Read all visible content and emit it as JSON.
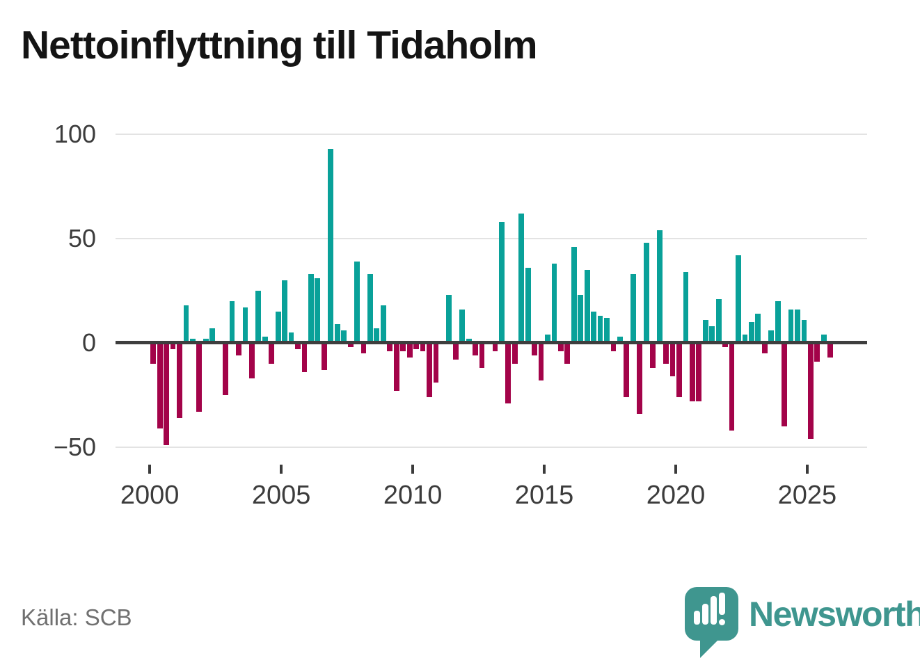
{
  "title": "Nettoinflyttning till Tidaholm",
  "source_note": "Källa: SCB",
  "branding": {
    "wordmark": "Newsworthy",
    "logo_icon": "speech-bubble-bar-chart-icon"
  },
  "colors": {
    "positive_bar": "#09a199",
    "negative_bar": "#a30349",
    "logo_teal": "#3f968f",
    "grid": "#e3e3e3",
    "zero_line": "#3e3e3e",
    "axis_text": "#3c3c3c",
    "title_text": "#141414",
    "source_text": "#707070"
  },
  "chart_data": {
    "type": "bar",
    "title": "Nettoinflyttning till Tidaholm",
    "frequency": "quarterly",
    "legend": "none",
    "grid": "horizontal-only",
    "ylim": [
      -50,
      100
    ],
    "y_axis": {
      "ticks": [
        {
          "value": 100,
          "label": "100"
        },
        {
          "value": 50,
          "label": "50"
        },
        {
          "value": 0,
          "label": "0"
        },
        {
          "value": -50,
          "label": "−50"
        }
      ]
    },
    "x_axis": {
      "ticks": [
        {
          "value": 2000,
          "label": "2000"
        },
        {
          "value": 2005,
          "label": "2005"
        },
        {
          "value": 2010,
          "label": "2010"
        },
        {
          "value": 2015,
          "label": "2015"
        },
        {
          "value": 2020,
          "label": "2020"
        },
        {
          "value": 2025,
          "label": "2025"
        }
      ]
    },
    "quarterly_values_by_year": [
      {
        "year": 2000,
        "values": [
          -10,
          -41,
          -49,
          -3
        ]
      },
      {
        "year": 2001,
        "values": [
          -36,
          18,
          2,
          -33
        ]
      },
      {
        "year": 2002,
        "values": [
          2,
          7,
          0,
          -25
        ]
      },
      {
        "year": 2003,
        "values": [
          20,
          -6,
          17,
          -17
        ]
      },
      {
        "year": 2004,
        "values": [
          25,
          3,
          -10,
          15
        ]
      },
      {
        "year": 2005,
        "values": [
          30,
          5,
          -3,
          -14
        ]
      },
      {
        "year": 2006,
        "values": [
          33,
          31,
          -13,
          93
        ]
      },
      {
        "year": 2007,
        "values": [
          9,
          6,
          -2,
          39
        ]
      },
      {
        "year": 2008,
        "values": [
          -5,
          33,
          7,
          18
        ]
      },
      {
        "year": 2009,
        "values": [
          -4,
          -23,
          -4,
          -7
        ]
      },
      {
        "year": 2010,
        "values": [
          -3,
          -4,
          -26,
          -19
        ]
      },
      {
        "year": 2011,
        "values": [
          0,
          23,
          -8,
          16
        ]
      },
      {
        "year": 2012,
        "values": [
          2,
          -6,
          -12,
          0
        ]
      },
      {
        "year": 2013,
        "values": [
          -4,
          58,
          -29,
          -10
        ]
      },
      {
        "year": 2014,
        "values": [
          62,
          36,
          -6,
          -18
        ]
      },
      {
        "year": 2015,
        "values": [
          4,
          38,
          -4,
          -10
        ]
      },
      {
        "year": 2016,
        "values": [
          46,
          23,
          35,
          15
        ]
      },
      {
        "year": 2017,
        "values": [
          13,
          12,
          -4,
          3
        ]
      },
      {
        "year": 2018,
        "values": [
          -26,
          33,
          -34,
          48
        ]
      },
      {
        "year": 2019,
        "values": [
          -12,
          54,
          -10,
          -16
        ]
      },
      {
        "year": 2020,
        "values": [
          -26,
          34,
          -28,
          -28
        ]
      },
      {
        "year": 2021,
        "values": [
          11,
          8,
          21,
          -2
        ]
      },
      {
        "year": 2022,
        "values": [
          -42,
          42,
          4,
          10
        ]
      },
      {
        "year": 2023,
        "values": [
          14,
          -5,
          6,
          20
        ]
      },
      {
        "year": 2024,
        "values": [
          -40,
          16,
          16,
          11
        ]
      },
      {
        "year": 2025,
        "values": [
          -46,
          -9,
          4,
          -7
        ]
      }
    ]
  }
}
